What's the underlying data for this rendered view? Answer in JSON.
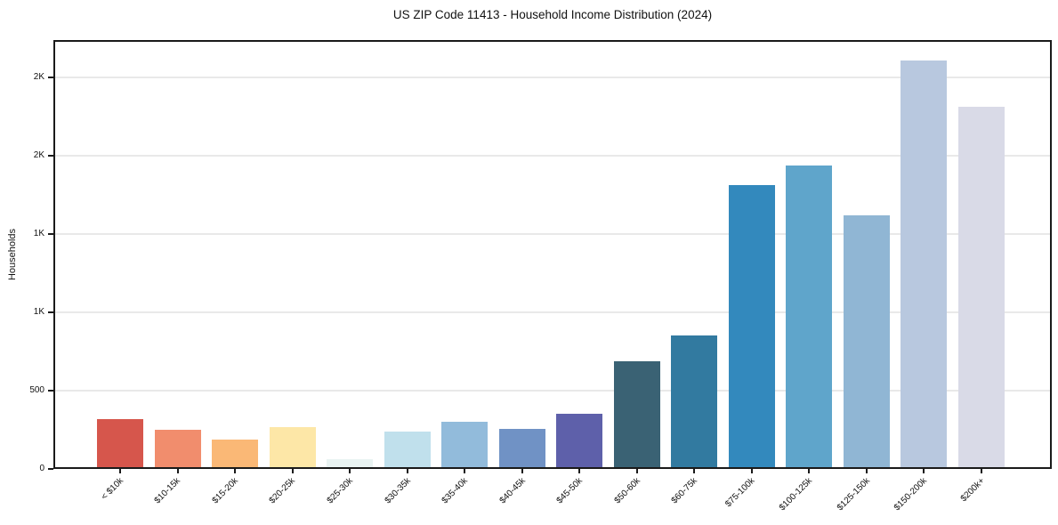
{
  "chart_data": {
    "type": "bar",
    "title": "US ZIP Code 11413 - Household Income Distribution (2024)",
    "xlabel": "",
    "ylabel": "Households",
    "categories": [
      "< $10k",
      "$10-15k",
      "$15-20k",
      "$20-25k",
      "$25-30k",
      "$30-35k",
      "$35-40k",
      "$40-45k",
      "$45-50k",
      "$50-60k",
      "$60-75k",
      "$75-100k",
      "$100-125k",
      "$125-150k",
      "$150-200k",
      "$200k+"
    ],
    "values": [
      320,
      250,
      190,
      265,
      60,
      240,
      300,
      255,
      350,
      690,
      855,
      1810,
      1940,
      1620,
      2610,
      2310
    ],
    "bar_colors": [
      "#d6564c",
      "#f18d6d",
      "#fab876",
      "#fde7a7",
      "#e9f3f2",
      "#c0e0ec",
      "#92bbdb",
      "#7092c5",
      "#5e60aa",
      "#3a6274",
      "#327aa0",
      "#3389bd",
      "#5fa5cb",
      "#90b6d4",
      "#b8c8df",
      "#d9dae7"
    ],
    "ylim": [
      0,
      2739
    ],
    "yticks": [
      {
        "value": 0,
        "label": "0"
      },
      {
        "value": 500,
        "label": "500"
      },
      {
        "value": 1000,
        "label": "1K"
      },
      {
        "value": 1500,
        "label": "1K"
      },
      {
        "value": 2000,
        "label": "2K"
      },
      {
        "value": 2500,
        "label": "2K"
      }
    ],
    "grid": "horizontal",
    "legend": "none"
  },
  "colors": {
    "background": "#ffffff",
    "grid": "#e9e9e9",
    "spine": "#1a1a1a",
    "text": "#111111"
  }
}
